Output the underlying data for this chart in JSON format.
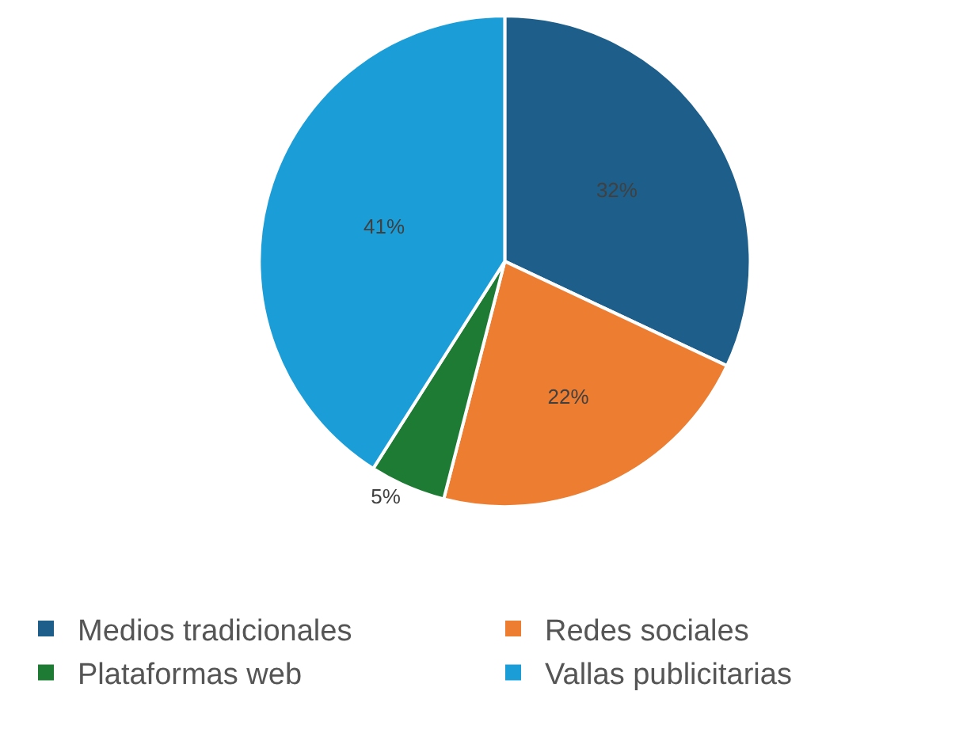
{
  "chart_data": {
    "type": "pie",
    "categories": [
      "Medios tradicionales",
      "Redes sociales",
      "Plataformas web",
      "Vallas publicitarias"
    ],
    "values": [
      32,
      22,
      5,
      41
    ],
    "colors": [
      "#1d5f8a",
      "#ed7d31",
      "#1e7b34",
      "#1b9ed8"
    ],
    "value_labels": [
      "32%",
      "22%",
      "5%",
      "41%"
    ],
    "legend": "bottom"
  }
}
